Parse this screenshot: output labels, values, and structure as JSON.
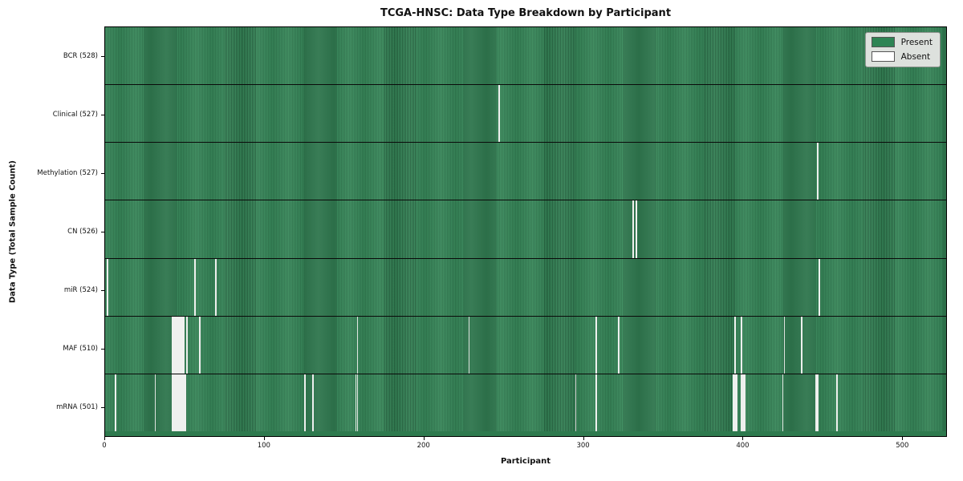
{
  "title": "TCGA-HNSC: Data Type Breakdown by Participant",
  "x_axis_label": "Participant",
  "y_axis_label": "Data Type (Total Sample Count)",
  "legend": {
    "present_label": "Present",
    "absent_label": "Absent"
  },
  "colors": {
    "present_green": "#2e8454",
    "present_stripe_light": "#3a8c5d",
    "present_stripe_dark": "#235f3d",
    "absent_white": "#ffffff",
    "legend_background": "#dde1dd",
    "row_separator": "#0a0a0a"
  },
  "chart_data": {
    "type": "heatmap",
    "title": "TCGA-HNSC: Data Type Breakdown by Participant",
    "xlabel": "Participant",
    "ylabel": "Data Type (Total Sample Count)",
    "legend_entries": [
      "Present",
      "Absent"
    ],
    "legend_position": "upper right",
    "x_ticks": [
      0,
      100,
      200,
      300,
      400,
      500
    ],
    "x_range": [
      0,
      528
    ],
    "n_participants": 528,
    "cell_states": {
      "present": 1,
      "absent": 0
    },
    "rows": [
      {
        "label": "BCR (528)",
        "data_type": "BCR",
        "present_count": 528,
        "absent_count": 0,
        "absent_participants": []
      },
      {
        "label": "Clinical (527)",
        "data_type": "Clinical",
        "present_count": 527,
        "absent_count": 1,
        "absent_participants": [
          247
        ]
      },
      {
        "label": "Methylation (527)",
        "data_type": "Methylation",
        "present_count": 527,
        "absent_count": 1,
        "absent_participants": [
          447
        ]
      },
      {
        "label": "CN (526)",
        "data_type": "CN",
        "present_count": 526,
        "absent_count": 2,
        "absent_participants": [
          331,
          333
        ]
      },
      {
        "label": "miR (524)",
        "data_type": "miR",
        "present_count": 524,
        "absent_count": 4,
        "absent_participants": [
          1,
          56,
          69,
          448
        ]
      },
      {
        "label": "MAF (510)",
        "data_type": "MAF",
        "present_count": 510,
        "absent_count": 18,
        "absent_participants": [
          42,
          43,
          44,
          45,
          46,
          47,
          48,
          49,
          51,
          59,
          158,
          228,
          308,
          322,
          395,
          399,
          426,
          437
        ]
      },
      {
        "label": "mRNA (501)",
        "data_type": "mRNA",
        "present_count": 501,
        "absent_count": 27,
        "absent_participants": [
          6,
          31,
          42,
          43,
          44,
          45,
          46,
          47,
          48,
          49,
          50,
          125,
          130,
          157,
          158,
          295,
          308,
          394,
          395,
          396,
          399,
          400,
          401,
          425,
          446,
          447,
          459
        ]
      }
    ]
  }
}
